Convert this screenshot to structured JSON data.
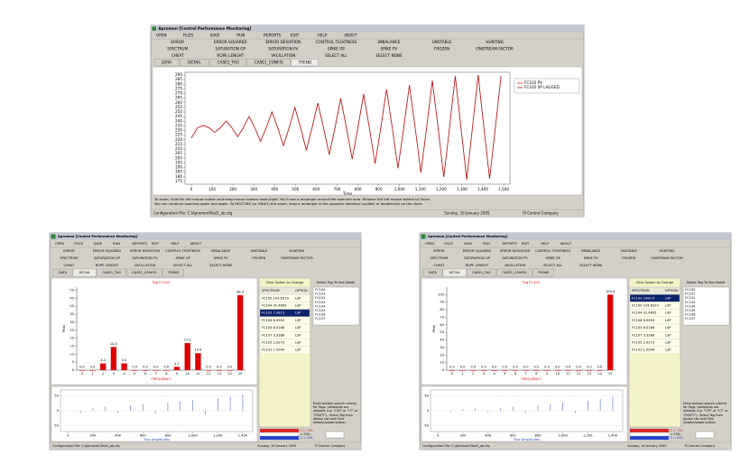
{
  "app": {
    "title": "Apromon [Control Performance Monitoring]",
    "menu": [
      "OPEN",
      "FILES",
      "SAVE",
      "RUN",
      "REPORTS",
      "EDIT",
      "HELP",
      "ABOUT"
    ],
    "buttons": [
      [
        "ERROR",
        "ERROR SQUARED",
        "ERROR DEVIATION",
        "CONTROL TIGHTNESS",
        "IMBALANCE",
        "UNSTABLE",
        "HUNTING"
      ],
      [
        "SPECTRUM",
        "SATURATION OP",
        "SATURATION PV",
        "SPIKE OP",
        "SPIKE PV",
        "FROZEN",
        "ONSTREAM FACTOR"
      ],
      [
        "CHEAT",
        "ROPE LENGHT",
        "VACILLATION",
        "SELECT ALL",
        "SELECT NONE"
      ]
    ],
    "tabs": [
      "DATA",
      "DETAIL",
      "CASE1_TAG",
      "CASE1_CONFIG",
      "TREND"
    ],
    "config_file": "Configuration File: C:\\Apromon\\Test1_ab.cfg",
    "date": "Sunday, 16 January 2005",
    "company": "PI Control Company"
  },
  "trend_window": {
    "hint": [
      "To zoom, hold the left mouse button and drag mouse toward down/right. You'll see a rectangle around the selected area. Release the left mouse button to Zoom.",
      "You can continue zooming again and again. To RESTORE (or UNDO) the zoom, drag a rectangle in the opposite direction (up/left) or doubleclick on the chart."
    ]
  },
  "detail_panel": {
    "header": "Click Option to Change",
    "columns": [
      "SPECTRUM",
      "OPTION"
    ],
    "select_header": "Select Tag To See Detail",
    "tags": [
      "FC100",
      "FC101",
      "FC102",
      "FC103",
      "FC104",
      "FC105",
      "FC106",
      "FC107"
    ],
    "help": "Enter bottom search criteria for Tags. (wildcards are allowed, e.g. \"C5*\" or \"C?\" or \"FI00??\")- Select Tag from Above List and Click Detail/Update button.",
    "legend": [
      "P > 75%",
      "> 25%",
      "0 < 25%"
    ]
  },
  "detail_windows": [
    {
      "rows": [
        [
          "FC100 104.6319",
          "LSP"
        ],
        [
          "FC104 31.4605",
          "LSP"
        ],
        [
          "FC102 7.2813",
          "LSP"
        ],
        [
          "FC106 6.9950",
          "LSP"
        ],
        [
          "FC103 6.0166",
          "LSP"
        ],
        [
          "FC107 3.3386",
          "LSP"
        ],
        [
          "FC105 2.9273",
          "LSP"
        ],
        [
          "FC101 1.5944",
          "LSP"
        ]
      ]
    },
    {
      "rows": [
        [
          "FC102 1000.0",
          "LSP"
        ],
        [
          "FC100 104.6319",
          "LSP"
        ],
        [
          "FC104 31.4605",
          "LSP"
        ],
        [
          "FC106 6.9950",
          "LSP"
        ],
        [
          "FC103 6.0166",
          "LSP"
        ],
        [
          "FC107 3.3386",
          "LSP"
        ],
        [
          "FC105 2.9273",
          "LSP"
        ],
        [
          "FC101 1.5944",
          "LSP"
        ]
      ]
    }
  ],
  "chart_data": [
    {
      "type": "line",
      "xlabel": "Time",
      "x": [
        0,
        30,
        57.5,
        85,
        112.5,
        140,
        167.5,
        195,
        222.5,
        250,
        277.5,
        305,
        332.5,
        360,
        387.5,
        415,
        442.5,
        470,
        497.5,
        525,
        552.5,
        580,
        607.5,
        635,
        662.5,
        690,
        717.5,
        745,
        772.5,
        800,
        827.5,
        855,
        882.5,
        910,
        937.5,
        965,
        992.5,
        1020,
        1047.5,
        1075,
        1102.5,
        1130,
        1157.5,
        1185,
        1212.5,
        1240,
        1267.5,
        1295,
        1322.5,
        1350,
        1377.5,
        1405,
        1432.5,
        1460,
        1487.5
      ],
      "series": [
        {
          "name": "FC102 PV",
          "color": "#e02828",
          "values": [
            222,
            233,
            235.5,
            233,
            228,
            233,
            240.4,
            233,
            223.2,
            233,
            245.2,
            233,
            218.4,
            233,
            250.1,
            233,
            213.5,
            233,
            254.9,
            233,
            208.7,
            233,
            259.7,
            233,
            203.9,
            233,
            264.6,
            233,
            199,
            233,
            269.4,
            233,
            194.2,
            233,
            274.3,
            233,
            189.3,
            233,
            279.1,
            233,
            184.5,
            233,
            283.9,
            233,
            179.7,
            233,
            288.8,
            233,
            177,
            233,
            290,
            233,
            178,
            233,
            289
          ]
        },
        {
          "name": "FC102 SP LAGGED",
          "color": "#b01010",
          "values": [
            222,
            233,
            235.5,
            233,
            228,
            233,
            240.4,
            233,
            223.2,
            233,
            245.2,
            233,
            218.4,
            233,
            250.1,
            233,
            213.5,
            233,
            254.9,
            233,
            208.7,
            233,
            259.7,
            233,
            203.9,
            233,
            264.6,
            233,
            199,
            233,
            269.4,
            233,
            194.2,
            233,
            274.3,
            233,
            189.3,
            233,
            279.1,
            233,
            184.5,
            233,
            283.9,
            233,
            179.7,
            233,
            288.8,
            233,
            177,
            233,
            290,
            233,
            178,
            233,
            289
          ]
        }
      ],
      "xlim": [
        -30,
        1530
      ],
      "xticks": [
        0,
        100,
        200,
        300,
        400,
        500,
        600,
        700,
        800,
        900,
        {
          "value": 1000,
          "label": "1,000"
        },
        {
          "value": 1100,
          "label": "1,100"
        },
        {
          "value": 1200,
          "label": "1,200"
        },
        {
          "value": 1300,
          "label": "1,300"
        },
        {
          "value": 1400,
          "label": "1,400"
        },
        {
          "value": 1500,
          "label": "1,500"
        }
      ],
      "ylim": [
        172,
        293
      ],
      "yticks": [
        175,
        180,
        185,
        190,
        195,
        200,
        205,
        210,
        215,
        220,
        225,
        230,
        235,
        240,
        245,
        250,
        255,
        260,
        265,
        270,
        275,
        280,
        285,
        290
      ],
      "legend": "upper right"
    },
    {
      "type": "bar",
      "title": "Tag FC102",
      "xlabel": "FREQUENCY",
      "ylabel": "Peak",
      "color": "#e00000",
      "categories": [
        0,
        1,
        2,
        3,
        4,
        5,
        6,
        7,
        8,
        9,
        10,
        11,
        12,
        13,
        14,
        15
      ],
      "values": [
        0,
        0,
        4.2,
        14.5,
        4.2,
        0,
        0,
        0,
        0,
        2.1,
        17,
        10.6,
        0,
        0,
        0,
        46.9
      ],
      "value_labels": [
        "0.0",
        "0.0",
        "4.2",
        "14.5",
        "4.2",
        "0.0",
        "0.0",
        "0.0",
        "0.0",
        "2.1",
        "17.0",
        "10.6",
        "0.0",
        "0.0",
        "0.0",
        "46.9"
      ],
      "ylim": [
        0,
        52
      ],
      "yticks": [
        0,
        5,
        10,
        15,
        20,
        25,
        30,
        35,
        40,
        45,
        50
      ]
    },
    {
      "type": "stem",
      "xlabel": "True Amplitudes",
      "color": "#3a4fb0",
      "x": [
        100,
        200,
        300,
        400,
        500,
        600,
        700,
        800,
        900,
        1000,
        1100,
        1200,
        1300,
        1400
      ],
      "values": [
        -8,
        10,
        14,
        -6,
        18,
        22,
        -10,
        28,
        32,
        36,
        -12,
        42,
        48,
        55
      ],
      "xlim": [
        -60,
        1480
      ],
      "xticks": [
        0,
        200,
        400,
        600,
        800,
        {
          "value": 1000,
          "label": "1,000"
        },
        {
          "value": 1200,
          "label": "1,200"
        },
        {
          "value": 1400,
          "label": "1,400"
        }
      ],
      "ylim": [
        -70,
        70
      ],
      "yticks": [
        -50,
        0,
        50
      ]
    },
    {
      "type": "bar",
      "title": "Tag FC102",
      "xlabel": "FREQUENCY",
      "ylabel": "Peak",
      "color": "#e00000",
      "categories": [
        0,
        1,
        2,
        3,
        4,
        5,
        6,
        7,
        8,
        9,
        10,
        11,
        12,
        13,
        14,
        15
      ],
      "values": [
        0,
        0,
        0,
        0,
        0,
        0,
        0,
        0,
        0,
        0,
        0,
        0,
        0,
        0,
        0,
        100
      ],
      "value_labels": [
        "0.0",
        "0.0",
        "0.0",
        "0.0",
        "0.0",
        "0.0",
        "0.0",
        "0.0",
        "0.0",
        "0.0",
        "0.0",
        "0.0",
        "0.0",
        "0.0",
        "0.0",
        "100.0"
      ],
      "ylim": [
        0,
        110
      ],
      "yticks": [
        0,
        10,
        20,
        30,
        40,
        50,
        60,
        70,
        80,
        90,
        100
      ]
    },
    {
      "type": "stem",
      "xlabel": "True Amplitudes",
      "color": "#3a4fb0",
      "x": [
        100,
        200,
        300,
        400,
        500,
        600,
        700,
        800,
        900,
        1000,
        1100,
        1200,
        1300,
        1400
      ],
      "values": [
        -4,
        6,
        8,
        -4,
        10,
        14,
        -6,
        18,
        22,
        28,
        -8,
        34,
        40,
        48
      ],
      "xlim": [
        -60,
        1480
      ],
      "xticks": [
        0,
        200,
        400,
        600,
        800,
        {
          "value": 1000,
          "label": "1,000"
        },
        {
          "value": 1200,
          "label": "1,200"
        },
        {
          "value": 1400,
          "label": "1,400"
        }
      ],
      "ylim": [
        -70,
        70
      ],
      "yticks": [
        -50,
        0,
        50
      ]
    }
  ]
}
